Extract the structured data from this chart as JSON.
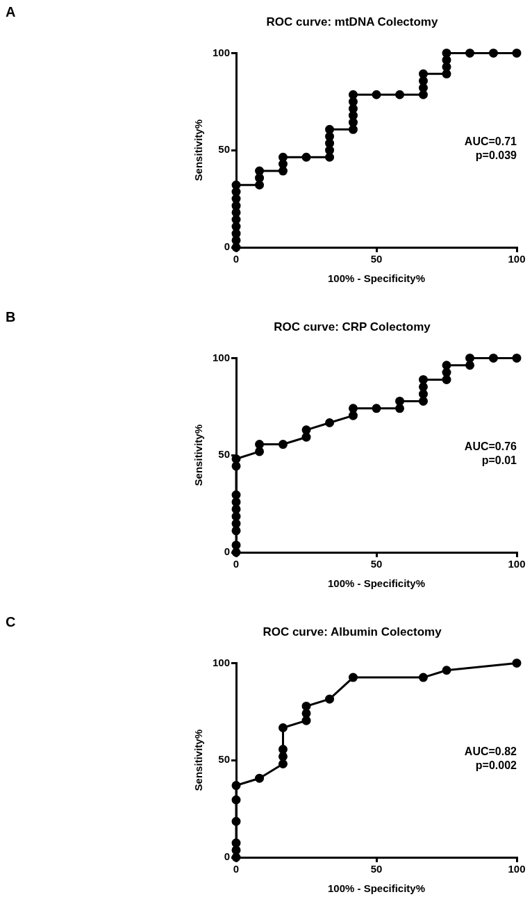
{
  "chart_data": [
    {
      "type": "line",
      "title": "ROC curve: mtDNA Colectomy",
      "xlabel": "100% - Specificity%",
      "ylabel": "Sensitivity%",
      "annotations": [
        "A",
        "AUC=0.71",
        "p=0.039"
      ],
      "xlim": [
        0,
        100
      ],
      "xticks": [
        0,
        50,
        100
      ],
      "ylim": [
        0,
        100
      ],
      "yticks": [
        0,
        50,
        100
      ],
      "grid": false,
      "legend": false,
      "marker": "circle",
      "line_style": "solid",
      "series": [
        {
          "color": "#000000",
          "x": [
            0,
            0,
            0,
            0,
            0,
            0,
            0,
            0,
            0,
            0,
            8.3,
            8.3,
            8.3,
            16.7,
            16.7,
            16.7,
            25,
            33.3,
            33.3,
            33.3,
            33.3,
            33.3,
            41.7,
            41.7,
            41.7,
            41.7,
            41.7,
            41.7,
            50,
            58.3,
            66.7,
            66.7,
            66.7,
            66.7,
            75,
            75,
            75,
            75,
            83.3,
            91.7,
            100
          ],
          "values": [
            0,
            3.6,
            7.1,
            10.7,
            14.3,
            17.9,
            21.4,
            25,
            28.6,
            32.1,
            32.1,
            35.7,
            39.3,
            39.3,
            42.9,
            46.4,
            46.4,
            46.4,
            50,
            53.6,
            57.1,
            60.7,
            60.7,
            64.3,
            67.9,
            71.4,
            75,
            78.6,
            78.6,
            78.6,
            78.6,
            82.1,
            85.7,
            89.3,
            89.3,
            92.9,
            96.4,
            100,
            100,
            100,
            100
          ]
        }
      ]
    },
    {
      "type": "line",
      "title": "ROC curve: CRP Colectomy",
      "xlabel": "100% - Specificity%",
      "ylabel": "Sensitivity%",
      "annotations": [
        "B",
        "AUC=0.76",
        "p=0.01"
      ],
      "xlim": [
        0,
        100
      ],
      "xticks": [
        0,
        50,
        100
      ],
      "ylim": [
        0,
        100
      ],
      "yticks": [
        0,
        50,
        100
      ],
      "grid": false,
      "legend": false,
      "marker": "circle",
      "line_style": "solid",
      "series": [
        {
          "color": "#000000",
          "x": [
            0,
            0,
            0,
            0,
            0,
            0,
            0,
            0,
            0,
            0,
            8.3,
            8.3,
            16.7,
            25,
            25,
            33.3,
            41.7,
            41.7,
            50,
            58.3,
            58.3,
            66.7,
            66.7,
            66.7,
            66.7,
            75,
            75,
            75,
            83.3,
            83.3,
            91.7,
            100
          ],
          "values": [
            0,
            3.7,
            11.1,
            14.8,
            18.5,
            22.2,
            25.9,
            29.6,
            44.4,
            48.1,
            51.9,
            55.6,
            55.6,
            59.3,
            63,
            66.7,
            70.4,
            74.1,
            74.1,
            74.1,
            77.8,
            77.8,
            81.5,
            85.2,
            88.9,
            88.9,
            92.6,
            96.3,
            96.3,
            100,
            100,
            100
          ]
        }
      ]
    },
    {
      "type": "line",
      "title": "ROC curve: Albumin Colectomy",
      "xlabel": "100% - Specificity%",
      "ylabel": "Sensitivity%",
      "annotations": [
        "C",
        "AUC=0.82",
        "p=0.002"
      ],
      "xlim": [
        0,
        100
      ],
      "xticks": [
        0,
        50,
        100
      ],
      "ylim": [
        0,
        100
      ],
      "yticks": [
        0,
        50,
        100
      ],
      "grid": false,
      "legend": false,
      "marker": "circle",
      "line_style": "solid",
      "series": [
        {
          "color": "#000000",
          "x": [
            0,
            0,
            0,
            0,
            0,
            0,
            8.3,
            16.7,
            16.7,
            16.7,
            16.7,
            25,
            25,
            25,
            33.3,
            41.7,
            66.7,
            75,
            100
          ],
          "values": [
            0,
            3.7,
            7.4,
            18.5,
            29.6,
            37,
            40.7,
            48.1,
            51.9,
            55.6,
            66.7,
            70.4,
            74.1,
            77.8,
            81.5,
            92.6,
            92.6,
            96.3,
            100
          ]
        }
      ]
    }
  ]
}
